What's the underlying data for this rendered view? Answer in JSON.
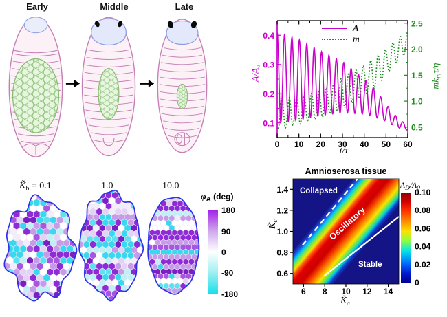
{
  "colors": {
    "magenta": "#CC00CC",
    "green": "#1E8C1E",
    "navy": "#141487",
    "blob_outline": "#3030E8",
    "embryo_outline": "#C57FB5",
    "embryo_fill": "#FCF1F7",
    "head_fill": "#E4E8FB",
    "head_outline": "#8D9BE3",
    "tissue_fill": "#E6F6DF",
    "tissue_outline": "#86BB70"
  },
  "panel_dev": {
    "stages": [
      "Early",
      "Middle",
      "Late"
    ]
  },
  "panel_cells": {
    "labels": [
      {
        "main": "K̃",
        "sub": "b",
        "rest": " = 0.1"
      },
      {
        "main": "",
        "sub": "",
        "rest": "1.0"
      },
      {
        "main": "",
        "sub": "",
        "rest": "10.0"
      }
    ],
    "colorbar": {
      "main": "φ",
      "sub": "A",
      "rest": " (deg)",
      "ticks": [
        "180",
        "90",
        "0",
        "-90",
        "-180"
      ],
      "stops": [
        "#A020E8",
        "#CFA6EC",
        "#FFFFFF",
        "#9FEFF2",
        "#18E0EC"
      ]
    },
    "palette": [
      "#7B1FC4",
      "#8F2BD6",
      "#8F2BD6",
      "#A855E0",
      "#C79BE8",
      "#C79BE8",
      "#E4D2F4",
      "#FFFFFF",
      "#FFFFFF",
      "#F3ECFA",
      "#BFF0F5",
      "#39D8EF",
      "#39D8EF",
      "#5FE0F0"
    ]
  },
  "chart_data": [
    {
      "type": "line",
      "xlabel": "t/τ",
      "xlim": [
        0,
        60
      ],
      "xticks": [
        [
          0,
          "0"
        ],
        [
          10,
          "10"
        ],
        [
          20,
          "20"
        ],
        [
          30,
          "30"
        ],
        [
          40,
          "40"
        ],
        [
          50,
          "50"
        ],
        [
          60,
          "60"
        ]
      ],
      "left_axis": {
        "label": "A/A₀",
        "color": "#CC00CC",
        "lim": [
          0.05,
          0.45
        ],
        "ticks": [
          [
            0.1,
            "0.1"
          ],
          [
            0.2,
            "0.2"
          ],
          [
            0.3,
            "0.3"
          ],
          [
            0.4,
            "0.4"
          ]
        ]
      },
      "right_axis": {
        "label_main": "mk",
        "label_sub": "m",
        "label_rest": "τ/η",
        "color": "#1E8C1E",
        "lim": [
          0.3,
          2.55
        ],
        "ticks": [
          [
            0.5,
            "0.5"
          ],
          [
            1.0,
            "1.0"
          ],
          [
            1.5,
            "1.5"
          ],
          [
            2.0,
            "2.0"
          ],
          [
            2.5,
            "2.5"
          ]
        ]
      },
      "legend": [
        "A",
        "m"
      ],
      "series": [
        {
          "name": "A",
          "axis": "left",
          "style": "solid",
          "color": "#CC00CC",
          "period_tau": 3.4,
          "phase_lag_tau": 0,
          "envelope_t": [
            0,
            10,
            20,
            30,
            40,
            45,
            50,
            55,
            60
          ],
          "envelope_max": [
            0.41,
            0.385,
            0.345,
            0.31,
            0.25,
            0.215,
            0.165,
            0.12,
            0.09
          ],
          "envelope_min": [
            0.1,
            0.11,
            0.125,
            0.135,
            0.13,
            0.12,
            0.105,
            0.085,
            0.075
          ]
        },
        {
          "name": "m",
          "axis": "right",
          "style": "dotted",
          "color": "#1E8C1E",
          "period_tau": 3.4,
          "phase_lag_tau": 0.45,
          "envelope_t": [
            0,
            10,
            20,
            30,
            40,
            45,
            50,
            55,
            60
          ],
          "envelope_max": [
            1.05,
            1.08,
            1.2,
            1.45,
            1.7,
            1.85,
            2.0,
            2.2,
            2.35
          ],
          "envelope_min": [
            0.45,
            0.55,
            0.68,
            0.85,
            1.1,
            1.25,
            1.5,
            1.75,
            1.95
          ]
        }
      ]
    },
    {
      "type": "heatmap",
      "title": "Amnioserosa tissue",
      "xlabel_main": "K̃",
      "xlabel_sub": "a",
      "ylabel_main": "K̃",
      "ylabel_sub": "c",
      "xlim": [
        5,
        15
      ],
      "ylim": [
        0.5,
        1.5
      ],
      "xticks": [
        [
          6,
          "6"
        ],
        [
          8,
          "8"
        ],
        [
          10,
          "10"
        ],
        [
          12,
          "12"
        ],
        [
          14,
          "14"
        ]
      ],
      "yticks": [
        [
          0.6,
          "0.6"
        ],
        [
          0.8,
          "0.8"
        ],
        [
          1.0,
          "1.0"
        ],
        [
          1.2,
          "1.2"
        ],
        [
          1.4,
          "1.4"
        ]
      ],
      "regions": [
        {
          "name": "Collapsed"
        },
        {
          "name": "Oscillatory"
        },
        {
          "name": "Stable"
        }
      ],
      "boundaries": [
        {
          "style": "dashed",
          "from": [
            5,
            0.76
          ],
          "to": [
            11.1,
            1.5
          ]
        },
        {
          "style": "solid",
          "from": [
            7.0,
            0.5
          ],
          "to": [
            15,
            1.14
          ]
        }
      ],
      "colorbar": {
        "label_main": "A",
        "label_sub": "D",
        "label_rest": "/A",
        "label_sub2": "0",
        "lim": [
          0,
          0.1
        ],
        "ticks": [
          [
            0.1,
            "0.10"
          ],
          [
            0.08,
            "0.08"
          ],
          [
            0.06,
            "0.06"
          ],
          [
            0.04,
            "0.04"
          ],
          [
            0.02,
            "0.02"
          ],
          [
            0,
            "0"
          ]
        ]
      },
      "style": {
        "background": "#141487",
        "boundary_color": "#FFFFFF",
        "band_stops": [
          [
            0,
            "#141487"
          ],
          [
            0.12,
            "#141487"
          ],
          [
            0.175,
            "#1E50E0"
          ],
          [
            0.215,
            "#00CFEF"
          ],
          [
            0.255,
            "#7FE840"
          ],
          [
            0.295,
            "#F5E000"
          ],
          [
            0.33,
            "#FF5500"
          ],
          [
            0.38,
            "#E00000"
          ],
          [
            0.47,
            "#CC0000"
          ],
          [
            0.52,
            "#F03000"
          ],
          [
            0.58,
            "#FF8C00"
          ],
          [
            0.63,
            "#FFE100"
          ],
          [
            0.67,
            "#80E840"
          ],
          [
            0.71,
            "#00D0D8"
          ],
          [
            0.745,
            "#1040D0"
          ],
          [
            0.79,
            "#141487"
          ],
          [
            1,
            "#141487"
          ]
        ],
        "colorbar_stops": [
          [
            0,
            "#8F0000"
          ],
          [
            0.1,
            "#D00000"
          ],
          [
            0.2,
            "#FF3000"
          ],
          [
            0.32,
            "#FF8C00"
          ],
          [
            0.43,
            "#FFE100"
          ],
          [
            0.53,
            "#90FF40"
          ],
          [
            0.65,
            "#00E5E5"
          ],
          [
            0.78,
            "#0070FF"
          ],
          [
            0.9,
            "#0018D0"
          ],
          [
            1,
            "#000090"
          ]
        ]
      }
    }
  ]
}
